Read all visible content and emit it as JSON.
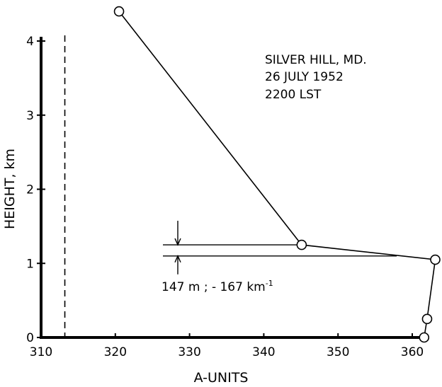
{
  "chart_data": {
    "type": "line",
    "xlabel": "A-UNITS",
    "ylabel": "HEIGHT, km",
    "xlim": [
      310,
      362
    ],
    "ylim": [
      0,
      4.4
    ],
    "xticks": [
      310,
      320,
      330,
      340,
      350,
      360
    ],
    "yticks": [
      0,
      1,
      2,
      3,
      4
    ],
    "series": [
      {
        "points": [
          {
            "x": 320.5,
            "y": 4.4
          },
          {
            "x": 345.1,
            "y": 1.25
          },
          {
            "x": 363.1,
            "y": 1.05
          },
          {
            "x": 362.0,
            "y": 0.25
          },
          {
            "x": 361.6,
            "y": 0.0
          }
        ]
      }
    ],
    "reference_line": {
      "x": 313.2,
      "style": "dashed"
    },
    "layer": {
      "top_km": 1.25,
      "bottom_km": 1.1,
      "label": "147 m ; - 167  km",
      "exponent": "-1"
    },
    "annotation": [
      "SILVER HILL, MD.",
      "26  JULY  1952",
      "2200  LST"
    ]
  }
}
